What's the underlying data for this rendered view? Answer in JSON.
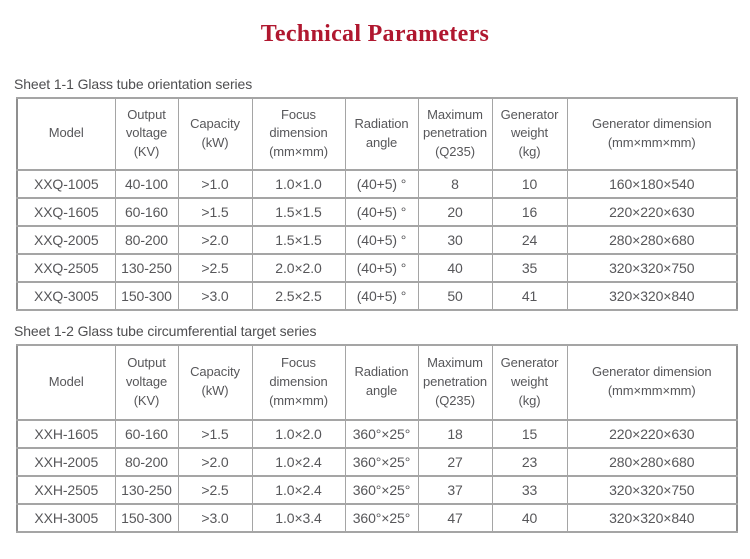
{
  "page": {
    "title": "Technical Parameters",
    "title_color": "#b0172f",
    "text_color": "#58585a",
    "border_color": "#a5a5a5"
  },
  "tables": [
    {
      "caption": "Sheet 1-1 Glass tube orientation series",
      "headers": [
        "Model",
        "Output\nvoltage\n(KV)",
        "Capacity\n(kW)",
        "Focus\ndimension\n(mm×mm)",
        "Radiation\nangle",
        "Maximum\npenetration\n(Q235)",
        "Generator\nweight\n(kg)",
        "Generator dimension\n(mm×mm×mm)"
      ],
      "rows": [
        [
          "XXQ-1005",
          "40-100",
          ">1.0",
          "1.0×1.0",
          "(40+5) °",
          "8",
          "10",
          "160×180×540"
        ],
        [
          "XXQ-1605",
          "60-160",
          ">1.5",
          "1.5×1.5",
          "(40+5) °",
          "20",
          "16",
          "220×220×630"
        ],
        [
          "XXQ-2005",
          "80-200",
          ">2.0",
          "1.5×1.5",
          "(40+5) °",
          "30",
          "24",
          "280×280×680"
        ],
        [
          "XXQ-2505",
          "130-250",
          ">2.5",
          "2.0×2.0",
          "(40+5) °",
          "40",
          "35",
          "320×320×750"
        ],
        [
          "XXQ-3005",
          "150-300",
          ">3.0",
          "2.5×2.5",
          "(40+5) °",
          "50",
          "41",
          "320×320×840"
        ]
      ]
    },
    {
      "caption": "Sheet 1-2 Glass tube circumferential target series",
      "headers": [
        "Model",
        "Output\nvoltage\n(KV)",
        "Capacity\n(kW)",
        "Focus\ndimension\n(mm×mm)",
        "Radiation\nangle",
        "Maximum\npenetration\n(Q235)",
        "Generator\nweight\n(kg)",
        "Generator dimension\n(mm×mm×mm)"
      ],
      "rows": [
        [
          "XXH-1605",
          "60-160",
          ">1.5",
          "1.0×2.0",
          "360°×25°",
          "18",
          "15",
          "220×220×630"
        ],
        [
          "XXH-2005",
          "80-200",
          ">2.0",
          "1.0×2.4",
          "360°×25°",
          "27",
          "23",
          "280×280×680"
        ],
        [
          "XXH-2505",
          "130-250",
          ">2.5",
          "1.0×2.4",
          "360°×25°",
          "37",
          "33",
          "320×320×750"
        ],
        [
          "XXH-3005",
          "150-300",
          ">3.0",
          "1.0×3.4",
          "360°×25°",
          "47",
          "40",
          "320×320×840"
        ]
      ]
    }
  ]
}
